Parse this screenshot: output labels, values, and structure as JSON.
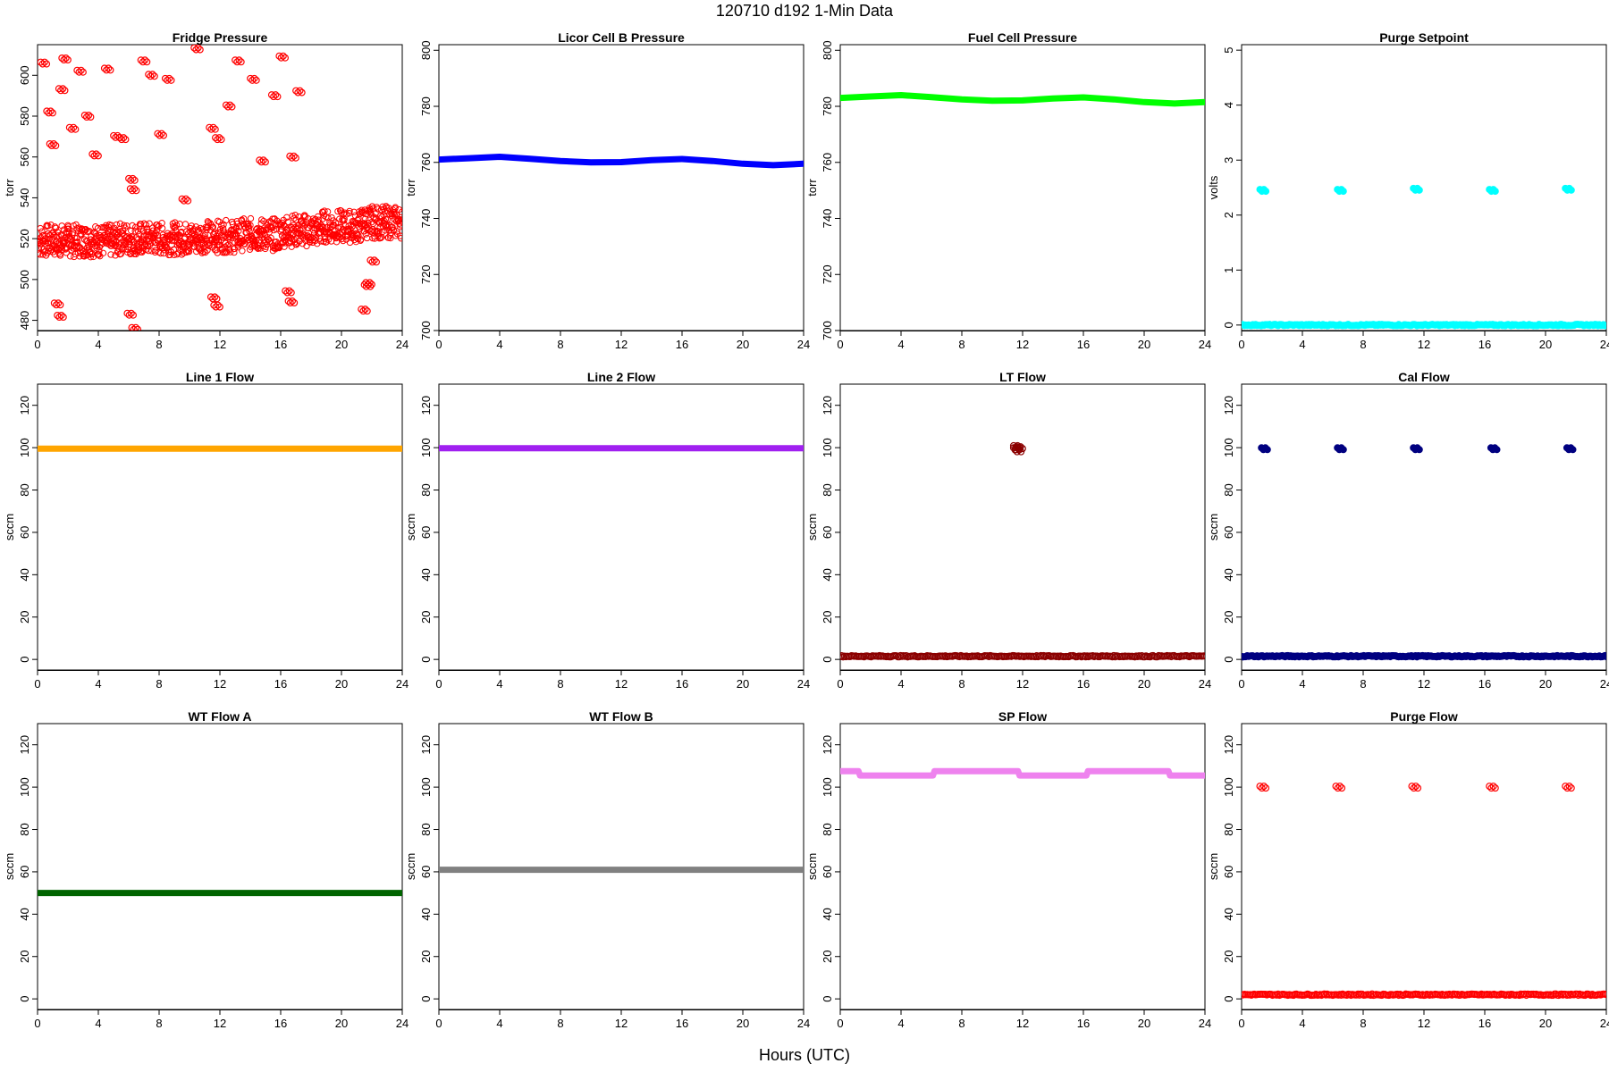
{
  "title": "120710    d192    1-Min Data",
  "xlabel": "Hours (UTC)",
  "chart_data": [
    {
      "type": "scatter",
      "title": "Fridge Pressure",
      "ylabel": "torr",
      "color": "#ff0000",
      "marker": "open-circle",
      "xlim": [
        0,
        24
      ],
      "ylim": [
        475,
        615
      ],
      "xticks": [
        0,
        4,
        8,
        12,
        16,
        20,
        24
      ],
      "yticks": [
        480,
        500,
        520,
        540,
        560,
        580,
        600
      ],
      "x": [
        0.3,
        0.9,
        1.4,
        2.0,
        2.6,
        3.1,
        3.7,
        4.3,
        4.9,
        5.4,
        6.0,
        6.6,
        7.1,
        7.7,
        8.3,
        8.9,
        9.4,
        10.0,
        10.6,
        11.1,
        11.7,
        12.3,
        12.9,
        13.4,
        14.0,
        14.6,
        15.1,
        15.7,
        16.3,
        16.9,
        17.4,
        18.0,
        18.6,
        19.1,
        19.7,
        20.3,
        20.9,
        21.4,
        22.0,
        22.6,
        23.1,
        23.7,
        0.4,
        0.8,
        1.0,
        1.6,
        1.8,
        2.3,
        2.8,
        3.3,
        3.8,
        4.6,
        5.2,
        5.6,
        6.2,
        6.3,
        7.0,
        7.5,
        8.1,
        8.6,
        9.7,
        10.5,
        11.5,
        11.9,
        12.6,
        13.2,
        14.2,
        14.8,
        15.6,
        16.1,
        16.8,
        17.2,
        21.7,
        22.1,
        1.3,
        1.5,
        6.1,
        6.4,
        11.6,
        11.8,
        16.5,
        16.7,
        21.5,
        21.8
      ],
      "y": [
        518,
        522,
        515,
        520,
        516,
        524,
        519,
        521,
        517,
        523,
        520,
        514,
        519,
        522,
        516,
        521,
        518,
        523,
        520,
        517,
        519,
        521,
        522,
        518,
        520,
        524,
        519,
        516,
        521,
        525,
        522,
        520,
        526,
        523,
        521,
        524,
        522,
        527,
        524,
        528,
        526,
        529,
        606,
        582,
        566,
        593,
        608,
        574,
        602,
        580,
        561,
        603,
        570,
        569,
        549,
        544,
        607,
        600,
        571,
        598,
        539,
        613,
        574,
        569,
        585,
        607,
        598,
        558,
        590,
        609,
        560,
        592,
        497,
        509,
        488,
        482,
        483,
        476,
        491,
        487,
        494,
        489,
        485,
        498
      ],
      "band": {
        "mean": [
          519,
          519,
          520,
          520,
          521,
          522,
          524,
          526,
          528
        ],
        "halfwidth": 8
      }
    },
    {
      "type": "line",
      "title": "Licor Cell B Pressure",
      "ylabel": "torr",
      "color": "#0000ff",
      "xlim": [
        0,
        24
      ],
      "ylim": [
        700,
        802
      ],
      "xticks": [
        0,
        4,
        8,
        12,
        16,
        20,
        24
      ],
      "yticks": [
        700,
        720,
        740,
        760,
        780,
        800
      ],
      "x": [
        0,
        2,
        4,
        6,
        8,
        10,
        12,
        14,
        16,
        18,
        20,
        22,
        24
      ],
      "y": [
        761,
        761.5,
        762,
        761.3,
        760.5,
        760,
        760.1,
        760.8,
        761.2,
        760.5,
        759.5,
        759,
        759.5
      ]
    },
    {
      "type": "line",
      "title": "Fuel Cell Pressure",
      "ylabel": "torr",
      "color": "#00ff00",
      "xlim": [
        0,
        24
      ],
      "ylim": [
        700,
        802
      ],
      "xticks": [
        0,
        4,
        8,
        12,
        16,
        20,
        24
      ],
      "yticks": [
        700,
        720,
        740,
        760,
        780,
        800
      ],
      "x": [
        0,
        2,
        4,
        6,
        8,
        10,
        12,
        14,
        16,
        18,
        20,
        22,
        24
      ],
      "y": [
        783,
        783.5,
        784,
        783.3,
        782.5,
        782,
        782.1,
        782.8,
        783.2,
        782.5,
        781.5,
        781,
        781.5
      ]
    },
    {
      "type": "scatter",
      "title": "Purge Setpoint",
      "ylabel": "volts",
      "color": "#00ffff",
      "marker": "filled-circle",
      "xlim": [
        0,
        24
      ],
      "ylim": [
        -0.1,
        5.1
      ],
      "xticks": [
        0,
        4,
        8,
        12,
        16,
        20,
        24
      ],
      "yticks": [
        0,
        1,
        2,
        3,
        4,
        5
      ],
      "baseline": 0,
      "x": [
        1.4,
        6.5,
        11.5,
        16.5,
        21.5
      ],
      "y": [
        2.45,
        2.45,
        2.47,
        2.45,
        2.47
      ]
    },
    {
      "type": "line",
      "title": "Line 1 Flow",
      "ylabel": "sccm",
      "color": "#ffa500",
      "xlim": [
        0,
        24
      ],
      "ylim": [
        -5,
        130
      ],
      "xticks": [
        0,
        4,
        8,
        12,
        16,
        20,
        24
      ],
      "yticks": [
        0,
        20,
        40,
        60,
        80,
        100,
        120
      ],
      "x": [
        0,
        24
      ],
      "y": [
        99.5,
        99.5
      ]
    },
    {
      "type": "line",
      "title": "Line 2 Flow",
      "ylabel": "sccm",
      "color": "#a020f0",
      "xlim": [
        0,
        24
      ],
      "ylim": [
        -5,
        130
      ],
      "xticks": [
        0,
        4,
        8,
        12,
        16,
        20,
        24
      ],
      "yticks": [
        0,
        20,
        40,
        60,
        80,
        100,
        120
      ],
      "x": [
        0,
        24
      ],
      "y": [
        99.7,
        99.7
      ]
    },
    {
      "type": "scatter",
      "title": "LT Flow",
      "ylabel": "sccm",
      "color": "#8b0000",
      "marker": "open-circle",
      "xlim": [
        0,
        24
      ],
      "ylim": [
        -5,
        130
      ],
      "xticks": [
        0,
        4,
        8,
        12,
        16,
        20,
        24
      ],
      "yticks": [
        0,
        20,
        40,
        60,
        80,
        100,
        120
      ],
      "baseline": 1.5,
      "x": [
        11.6,
        11.7,
        11.6,
        11.8
      ],
      "y": [
        100.5,
        98.5,
        99.5,
        100
      ]
    },
    {
      "type": "scatter",
      "title": "Cal Flow",
      "ylabel": "sccm",
      "color": "#000080",
      "marker": "filled-circle",
      "xlim": [
        0,
        24
      ],
      "ylim": [
        -5,
        130
      ],
      "xticks": [
        0,
        4,
        8,
        12,
        16,
        20,
        24
      ],
      "yticks": [
        0,
        20,
        40,
        60,
        80,
        100,
        120
      ],
      "baseline": 1.5,
      "x": [
        1.5,
        6.5,
        11.5,
        16.6,
        21.6
      ],
      "y": [
        99.5,
        99.5,
        99.5,
        99.5,
        99.5
      ]
    },
    {
      "type": "line",
      "title": "WT Flow A",
      "ylabel": "sccm",
      "color": "#006400",
      "xlim": [
        0,
        24
      ],
      "ylim": [
        -5,
        130
      ],
      "xticks": [
        0,
        4,
        8,
        12,
        16,
        20,
        24
      ],
      "yticks": [
        0,
        20,
        40,
        60,
        80,
        100,
        120
      ],
      "x": [
        0,
        24
      ],
      "y": [
        50,
        50
      ]
    },
    {
      "type": "line",
      "title": "WT Flow B",
      "ylabel": "sccm",
      "color": "#808080",
      "xlim": [
        0,
        24
      ],
      "ylim": [
        -5,
        130
      ],
      "xticks": [
        0,
        4,
        8,
        12,
        16,
        20,
        24
      ],
      "yticks": [
        0,
        20,
        40,
        60,
        80,
        100,
        120
      ],
      "x": [
        0,
        24
      ],
      "y": [
        61,
        61
      ]
    },
    {
      "type": "line",
      "title": "SP Flow",
      "ylabel": "sccm",
      "color": "#ee82ee",
      "xlim": [
        0,
        24
      ],
      "ylim": [
        -5,
        130
      ],
      "xticks": [
        0,
        4,
        8,
        12,
        16,
        20,
        24
      ],
      "yticks": [
        0,
        20,
        40,
        60,
        80,
        100,
        120
      ],
      "x": [
        0,
        1.2,
        1.3,
        6.1,
        6.2,
        11.7,
        11.8,
        16.2,
        16.3,
        21.6,
        21.7,
        24
      ],
      "y": [
        107.5,
        107.5,
        105.5,
        105.5,
        107.5,
        107.5,
        105.5,
        105.5,
        107.5,
        107.5,
        105.5,
        105.5
      ]
    },
    {
      "type": "scatter",
      "title": "Purge Flow",
      "ylabel": "sccm",
      "color": "#ff0000",
      "marker": "open-circle",
      "xlim": [
        0,
        24
      ],
      "ylim": [
        -5,
        130
      ],
      "xticks": [
        0,
        4,
        8,
        12,
        16,
        20,
        24
      ],
      "yticks": [
        0,
        20,
        40,
        60,
        80,
        100,
        120
      ],
      "baseline": 2,
      "x": [
        1.4,
        6.4,
        11.4,
        16.5,
        21.5
      ],
      "y": [
        100,
        100,
        100,
        100,
        100
      ]
    }
  ]
}
